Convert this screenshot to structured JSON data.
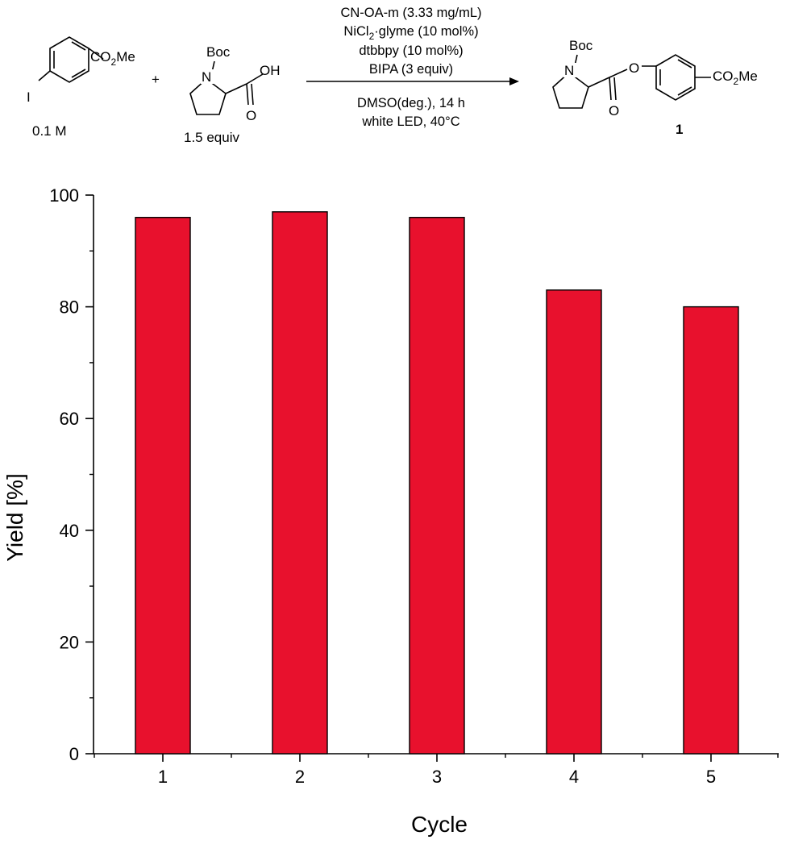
{
  "scheme": {
    "reagent_aryl": {
      "substituent": "CO",
      "substituent_sub": "2",
      "substituent_tail": "Me",
      "halide": "I",
      "concentration": "0.1 M"
    },
    "plus": "+",
    "reagent_acid": {
      "protecting_group": "Boc",
      "nitrogen": "N",
      "oh": "OH",
      "oxygen": "O",
      "amount": "1.5 equiv"
    },
    "conditions_above": [
      "CN-OA-m (3.33 mg/mL)",
      "NiCl",
      "dtbbpy (10 mol%)",
      "BIPA (3 equiv)"
    ],
    "nicl_sub": "2",
    "nicl_tail": "·glyme (10 mol%)",
    "conditions_below": [
      "DMSO(deg.), 14 h",
      "white LED, 40°C"
    ],
    "product": {
      "protecting_group": "Boc",
      "nitrogen": "N",
      "ester_o": "O",
      "carbonyl_o": "O",
      "substituent": "CO",
      "substituent_sub": "2",
      "substituent_tail": "Me",
      "label": "1"
    }
  },
  "chart_data": {
    "type": "bar",
    "categories": [
      "1",
      "2",
      "3",
      "4",
      "5"
    ],
    "values": [
      96,
      97,
      96,
      83,
      80
    ],
    "xlabel": "Cycle",
    "ylabel": "Yield [%]",
    "ylim": [
      0,
      100
    ],
    "yticks": [
      0,
      20,
      40,
      60,
      80,
      100
    ],
    "bar_color": "#e8112d",
    "grid": false
  }
}
